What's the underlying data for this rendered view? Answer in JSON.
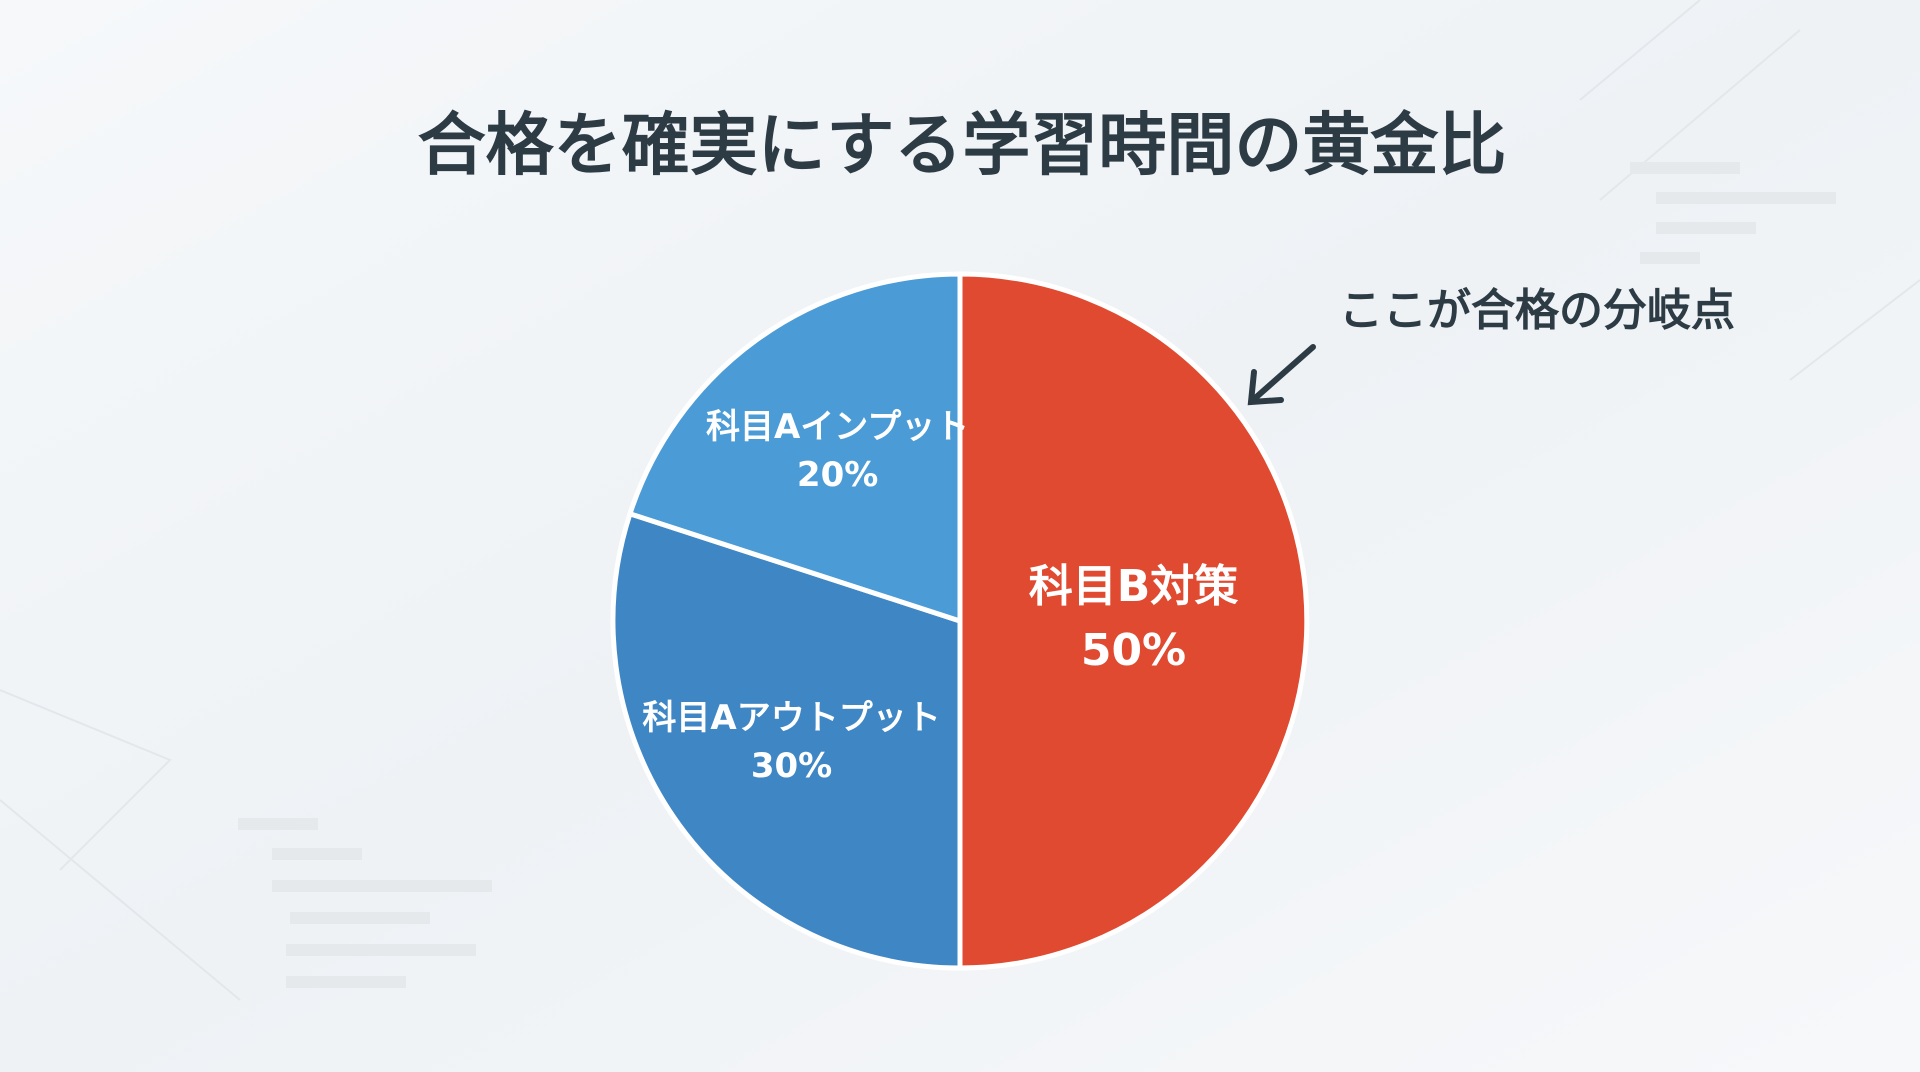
{
  "chart_data": {
    "type": "pie",
    "title": "合格を確実にする学習時間の黄金比",
    "categories": [
      "科目B対策",
      "科目Aアウトプット",
      "科目Aインプット"
    ],
    "values": [
      50,
      30,
      20
    ],
    "value_labels": [
      "50%",
      "30%",
      "20%"
    ],
    "colors": [
      "#e04a30",
      "#3f86c5",
      "#4a9bd6"
    ],
    "annotation": "ここが合格の分岐点"
  }
}
